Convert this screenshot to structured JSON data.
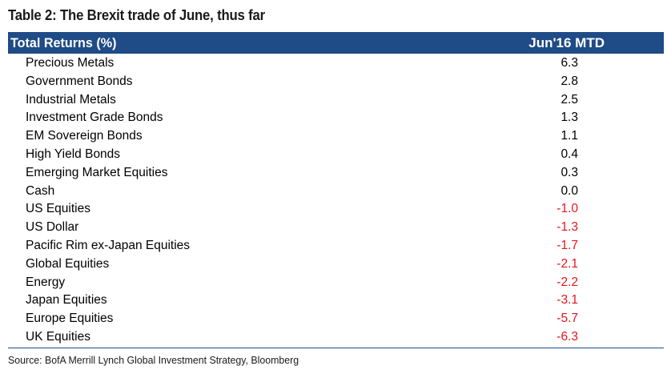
{
  "title": "Table 2: The Brexit trade of June, thus far",
  "header": {
    "label": "Total Returns (%)",
    "value": "Jun'16 MTD"
  },
  "colors": {
    "header_bg": "#1f4b86",
    "positive": "#000000",
    "negative": "#e8141a"
  },
  "source": "Source: BofA Merrill Lynch Global Investment Strategy, Bloomberg",
  "chart_data": {
    "type": "table",
    "title": "Table 2: The Brexit trade of June, thus far",
    "columns": [
      "Total Returns (%)",
      "Jun'16 MTD"
    ],
    "rows": [
      {
        "label": "Precious Metals",
        "value": "6.3"
      },
      {
        "label": "Government Bonds",
        "value": "2.8"
      },
      {
        "label": "Industrial Metals",
        "value": "2.5"
      },
      {
        "label": "Investment Grade Bonds",
        "value": "1.3"
      },
      {
        "label": "EM Sovereign Bonds",
        "value": "1.1"
      },
      {
        "label": "High Yield Bonds",
        "value": "0.4"
      },
      {
        "label": "Emerging Market Equities",
        "value": "0.3"
      },
      {
        "label": "Cash",
        "value": "0.0"
      },
      {
        "label": "US Equities",
        "value": "-1.0"
      },
      {
        "label": "US Dollar",
        "value": "-1.3"
      },
      {
        "label": "Pacific Rim ex-Japan Equities",
        "value": "-1.7"
      },
      {
        "label": "Global Equities",
        "value": "-2.1"
      },
      {
        "label": "Energy",
        "value": "-2.2"
      },
      {
        "label": "Japan Equities",
        "value": "-3.1"
      },
      {
        "label": "Europe Equities",
        "value": "-5.7"
      },
      {
        "label": "UK Equities",
        "value": "-6.3"
      }
    ]
  }
}
